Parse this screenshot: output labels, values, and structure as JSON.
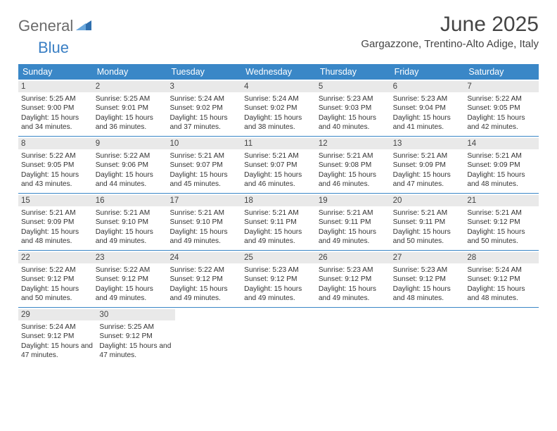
{
  "logo": {
    "general": "General",
    "blue": "Blue"
  },
  "title": "June 2025",
  "location": "Gargazzone, Trentino-Alto Adige, Italy",
  "header_bg": "#3a87c7",
  "day_names": [
    "Sunday",
    "Monday",
    "Tuesday",
    "Wednesday",
    "Thursday",
    "Friday",
    "Saturday"
  ],
  "weeks": [
    [
      {
        "n": "1",
        "sr": "5:25 AM",
        "ss": "9:00 PM",
        "dl": "15 hours and 34 minutes."
      },
      {
        "n": "2",
        "sr": "5:25 AM",
        "ss": "9:01 PM",
        "dl": "15 hours and 36 minutes."
      },
      {
        "n": "3",
        "sr": "5:24 AM",
        "ss": "9:02 PM",
        "dl": "15 hours and 37 minutes."
      },
      {
        "n": "4",
        "sr": "5:24 AM",
        "ss": "9:02 PM",
        "dl": "15 hours and 38 minutes."
      },
      {
        "n": "5",
        "sr": "5:23 AM",
        "ss": "9:03 PM",
        "dl": "15 hours and 40 minutes."
      },
      {
        "n": "6",
        "sr": "5:23 AM",
        "ss": "9:04 PM",
        "dl": "15 hours and 41 minutes."
      },
      {
        "n": "7",
        "sr": "5:22 AM",
        "ss": "9:05 PM",
        "dl": "15 hours and 42 minutes."
      }
    ],
    [
      {
        "n": "8",
        "sr": "5:22 AM",
        "ss": "9:05 PM",
        "dl": "15 hours and 43 minutes."
      },
      {
        "n": "9",
        "sr": "5:22 AM",
        "ss": "9:06 PM",
        "dl": "15 hours and 44 minutes."
      },
      {
        "n": "10",
        "sr": "5:21 AM",
        "ss": "9:07 PM",
        "dl": "15 hours and 45 minutes."
      },
      {
        "n": "11",
        "sr": "5:21 AM",
        "ss": "9:07 PM",
        "dl": "15 hours and 46 minutes."
      },
      {
        "n": "12",
        "sr": "5:21 AM",
        "ss": "9:08 PM",
        "dl": "15 hours and 46 minutes."
      },
      {
        "n": "13",
        "sr": "5:21 AM",
        "ss": "9:09 PM",
        "dl": "15 hours and 47 minutes."
      },
      {
        "n": "14",
        "sr": "5:21 AM",
        "ss": "9:09 PM",
        "dl": "15 hours and 48 minutes."
      }
    ],
    [
      {
        "n": "15",
        "sr": "5:21 AM",
        "ss": "9:09 PM",
        "dl": "15 hours and 48 minutes."
      },
      {
        "n": "16",
        "sr": "5:21 AM",
        "ss": "9:10 PM",
        "dl": "15 hours and 49 minutes."
      },
      {
        "n": "17",
        "sr": "5:21 AM",
        "ss": "9:10 PM",
        "dl": "15 hours and 49 minutes."
      },
      {
        "n": "18",
        "sr": "5:21 AM",
        "ss": "9:11 PM",
        "dl": "15 hours and 49 minutes."
      },
      {
        "n": "19",
        "sr": "5:21 AM",
        "ss": "9:11 PM",
        "dl": "15 hours and 49 minutes."
      },
      {
        "n": "20",
        "sr": "5:21 AM",
        "ss": "9:11 PM",
        "dl": "15 hours and 50 minutes."
      },
      {
        "n": "21",
        "sr": "5:21 AM",
        "ss": "9:12 PM",
        "dl": "15 hours and 50 minutes."
      }
    ],
    [
      {
        "n": "22",
        "sr": "5:22 AM",
        "ss": "9:12 PM",
        "dl": "15 hours and 50 minutes."
      },
      {
        "n": "23",
        "sr": "5:22 AM",
        "ss": "9:12 PM",
        "dl": "15 hours and 49 minutes."
      },
      {
        "n": "24",
        "sr": "5:22 AM",
        "ss": "9:12 PM",
        "dl": "15 hours and 49 minutes."
      },
      {
        "n": "25",
        "sr": "5:23 AM",
        "ss": "9:12 PM",
        "dl": "15 hours and 49 minutes."
      },
      {
        "n": "26",
        "sr": "5:23 AM",
        "ss": "9:12 PM",
        "dl": "15 hours and 49 minutes."
      },
      {
        "n": "27",
        "sr": "5:23 AM",
        "ss": "9:12 PM",
        "dl": "15 hours and 48 minutes."
      },
      {
        "n": "28",
        "sr": "5:24 AM",
        "ss": "9:12 PM",
        "dl": "15 hours and 48 minutes."
      }
    ],
    [
      {
        "n": "29",
        "sr": "5:24 AM",
        "ss": "9:12 PM",
        "dl": "15 hours and 47 minutes."
      },
      {
        "n": "30",
        "sr": "5:25 AM",
        "ss": "9:12 PM",
        "dl": "15 hours and 47 minutes."
      },
      null,
      null,
      null,
      null,
      null
    ]
  ],
  "labels": {
    "sunrise": "Sunrise: ",
    "sunset": "Sunset: ",
    "daylight": "Daylight: "
  }
}
